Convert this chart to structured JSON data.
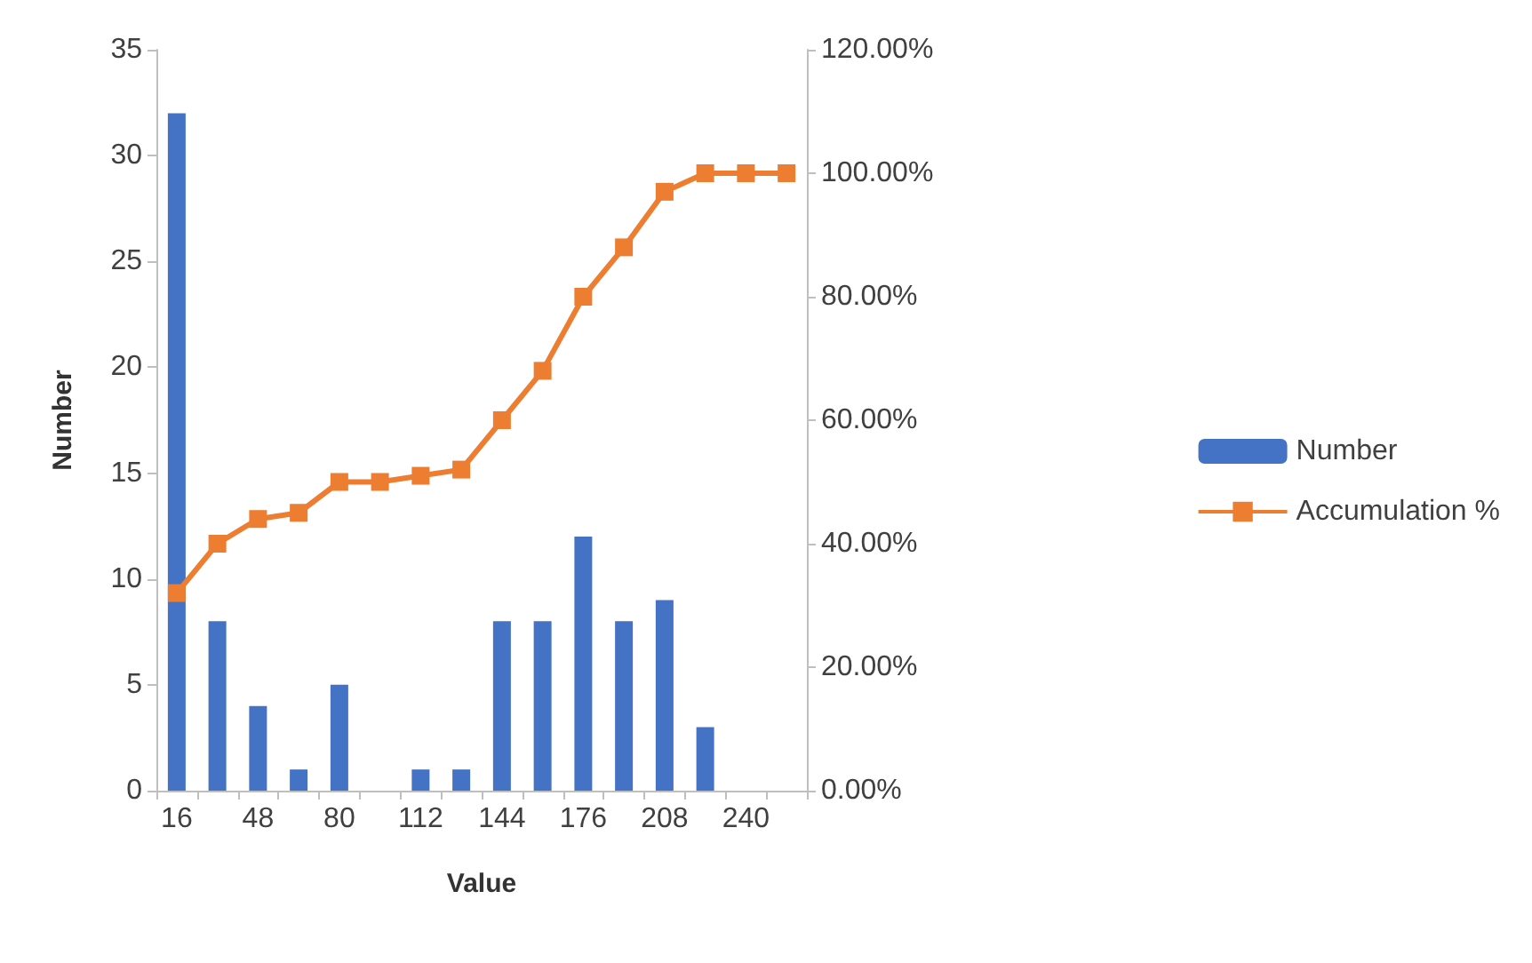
{
  "chart_data": {
    "type": "bar",
    "xlabel": "Value",
    "ylabel": "Number",
    "categories": [
      "16",
      null,
      "48",
      null,
      "80",
      null,
      "112",
      null,
      "144",
      null,
      "176",
      null,
      "208",
      null,
      "240",
      null
    ],
    "series": [
      {
        "name": "Number",
        "color": "#4472c4",
        "values": [
          32,
          8,
          4,
          1,
          5,
          0,
          1,
          1,
          8,
          8,
          12,
          8,
          9,
          3,
          0,
          0
        ]
      },
      {
        "name": "Accumulation %",
        "type": "line",
        "axis": "y2",
        "color": "#ed7d31",
        "marker": "square",
        "values": [
          32,
          40,
          44,
          45,
          50,
          50,
          51,
          52,
          60,
          68,
          80,
          88,
          97,
          100,
          100,
          100
        ]
      }
    ],
    "ylim": [
      0,
      35
    ],
    "yticks": [
      0,
      5,
      10,
      15,
      20,
      25,
      30,
      35
    ],
    "y2lim": [
      0,
      120
    ],
    "y2ticks": [
      {
        "value": 0,
        "label": "0.00%"
      },
      {
        "value": 20,
        "label": "20.00%"
      },
      {
        "value": 40,
        "label": "40.00%"
      },
      {
        "value": 60,
        "label": "60.00%"
      },
      {
        "value": 80,
        "label": "80.00%"
      },
      {
        "value": 100,
        "label": "100.00%"
      },
      {
        "value": 120,
        "label": "120.00%"
      }
    ],
    "grid": false,
    "legend": "right"
  }
}
